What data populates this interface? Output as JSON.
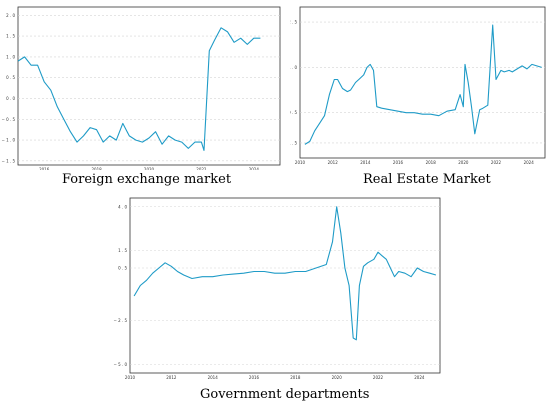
{
  "chart_data": [
    {
      "type": "line",
      "caption": "Foreign exchange market",
      "series_color": "#1f9bc7",
      "grid": true,
      "xlim": [
        2015,
        2025
      ],
      "ylim": [
        -1.6,
        2.2
      ],
      "xticks": [
        2016,
        2018,
        2020,
        2022,
        2024
      ],
      "xtick_labels": [
        "2016",
        "2018",
        "2020",
        "2022",
        "2024"
      ],
      "yticks": [
        2.0,
        1.5,
        1.0,
        0.5,
        0.0,
        -0.5,
        -1.0,
        -1.5
      ],
      "ytick_labels": [
        "2 . 0",
        "1 . 5",
        "1 . 0",
        "0 . 5",
        "0 . 0",
        "− 0 . 5",
        "− 1 . 0",
        "− 1 . 5"
      ],
      "series": [
        {
          "x": [
            2015.0,
            2015.25,
            2015.5,
            2015.75,
            2016.0,
            2016.25,
            2016.5,
            2016.75,
            2017.0,
            2017.25,
            2017.5,
            2017.75,
            2018.0,
            2018.25,
            2018.5,
            2018.75,
            2019.0,
            2019.25,
            2019.5,
            2019.75,
            2020.0,
            2020.25,
            2020.5,
            2020.75,
            2021.0,
            2021.25,
            2021.5,
            2021.75,
            2022.0,
            2022.1,
            2022.3,
            2022.5,
            2022.75,
            2023.0,
            2023.25,
            2023.5,
            2023.75,
            2024.0,
            2024.25
          ],
          "y": [
            0.9,
            1.0,
            0.8,
            0.8,
            0.4,
            0.2,
            -0.2,
            -0.5,
            -0.8,
            -1.05,
            -0.9,
            -0.7,
            -0.75,
            -1.05,
            -0.9,
            -1.0,
            -0.6,
            -0.9,
            -1.0,
            -1.05,
            -0.95,
            -0.8,
            -1.1,
            -0.9,
            -1.0,
            -1.05,
            -1.2,
            -1.05,
            -1.05,
            -1.25,
            1.15,
            1.4,
            1.7,
            1.6,
            1.35,
            1.45,
            1.3,
            1.45,
            1.45
          ]
        }
      ]
    },
    {
      "type": "line",
      "caption": "Real Estate Market",
      "series_color": "#1f9bc7",
      "grid": true,
      "xlim": [
        2010,
        2025
      ],
      "ylim": [
        -2.0,
        3.0
      ],
      "xticks": [
        2010,
        2012,
        2014,
        2016,
        2018,
        2020,
        2022,
        2024
      ],
      "xtick_labels": [
        "2010",
        "2012",
        "2014",
        "2016",
        "2018",
        "2020",
        "2022",
        "2024"
      ],
      "yticks": [
        2.5,
        1.0,
        -0.5,
        -1.5
      ],
      "ytick_labels": [
        "2 . 5",
        "1 . 0",
        "− 0 . 5",
        "− 1 . 5"
      ],
      "series": [
        {
          "x": [
            2010.3,
            2010.6,
            2010.9,
            2011.2,
            2011.5,
            2011.8,
            2012.1,
            2012.3,
            2012.6,
            2012.9,
            2013.1,
            2013.4,
            2013.6,
            2013.9,
            2014.1,
            2014.3,
            2014.5,
            2014.7,
            2015.0,
            2015.5,
            2016.0,
            2016.5,
            2017.0,
            2017.5,
            2018.0,
            2018.5,
            2019.0,
            2019.5,
            2019.8,
            2020.0,
            2020.1,
            2020.3,
            2020.5,
            2020.7,
            2021.0,
            2021.2,
            2021.5,
            2021.8,
            2022.0,
            2022.2,
            2022.3,
            2022.5,
            2022.8,
            2023.0,
            2023.3,
            2023.6,
            2023.9,
            2024.2,
            2024.5,
            2024.8
          ],
          "y": [
            -1.55,
            -1.45,
            -1.1,
            -0.85,
            -0.6,
            0.1,
            0.6,
            0.6,
            0.3,
            0.2,
            0.25,
            0.5,
            0.6,
            0.75,
            1.0,
            1.1,
            0.9,
            -0.3,
            -0.35,
            -0.4,
            -0.45,
            -0.5,
            -0.5,
            -0.55,
            -0.55,
            -0.6,
            -0.45,
            -0.4,
            0.1,
            -0.3,
            1.1,
            0.5,
            -0.3,
            -1.2,
            -0.4,
            -0.35,
            -0.25,
            2.4,
            0.6,
            0.8,
            0.9,
            0.85,
            0.9,
            0.85,
            0.95,
            1.05,
            0.95,
            1.1,
            1.05,
            1.0
          ]
        }
      ]
    },
    {
      "type": "line",
      "caption": "Government departments",
      "series_color": "#1f9bc7",
      "grid": true,
      "xlim": [
        2010,
        2025
      ],
      "ylim": [
        -5.5,
        4.5
      ],
      "xticks": [
        2010,
        2012,
        2014,
        2016,
        2018,
        2020,
        2022,
        2024
      ],
      "xtick_labels": [
        "2010",
        "2012",
        "2014",
        "2016",
        "2018",
        "2020",
        "2022",
        "2024"
      ],
      "yticks": [
        4.0,
        1.5,
        0.5,
        -2.5,
        -5.0
      ],
      "ytick_labels": [
        "4 . 0",
        "1 . 5",
        "0 . 5",
        "− 2 . 5",
        "− 5 . 0"
      ],
      "series": [
        {
          "x": [
            2010.2,
            2010.5,
            2010.8,
            2011.1,
            2011.4,
            2011.7,
            2012.0,
            2012.3,
            2012.6,
            2013.0,
            2013.5,
            2014.0,
            2014.5,
            2015.0,
            2015.5,
            2016.0,
            2016.5,
            2017.0,
            2017.5,
            2018.0,
            2018.5,
            2019.0,
            2019.5,
            2019.8,
            2020.0,
            2020.2,
            2020.4,
            2020.6,
            2020.8,
            2020.95,
            2021.1,
            2021.3,
            2021.5,
            2021.8,
            2022.0,
            2022.2,
            2022.4,
            2022.6,
            2022.8,
            2023.0,
            2023.3,
            2023.6,
            2023.9,
            2024.2,
            2024.5,
            2024.8
          ],
          "y": [
            -1.1,
            -0.5,
            -0.2,
            0.2,
            0.5,
            0.8,
            0.6,
            0.3,
            0.1,
            -0.1,
            0.0,
            0.0,
            0.1,
            0.15,
            0.2,
            0.3,
            0.3,
            0.2,
            0.2,
            0.3,
            0.3,
            0.5,
            0.7,
            2.0,
            4.0,
            2.5,
            0.5,
            -0.5,
            -3.5,
            -3.6,
            -0.5,
            0.6,
            0.8,
            1.0,
            1.4,
            1.2,
            1.0,
            0.5,
            0.0,
            0.3,
            0.2,
            0.0,
            0.5,
            0.3,
            0.2,
            0.1
          ]
        }
      ]
    }
  ]
}
